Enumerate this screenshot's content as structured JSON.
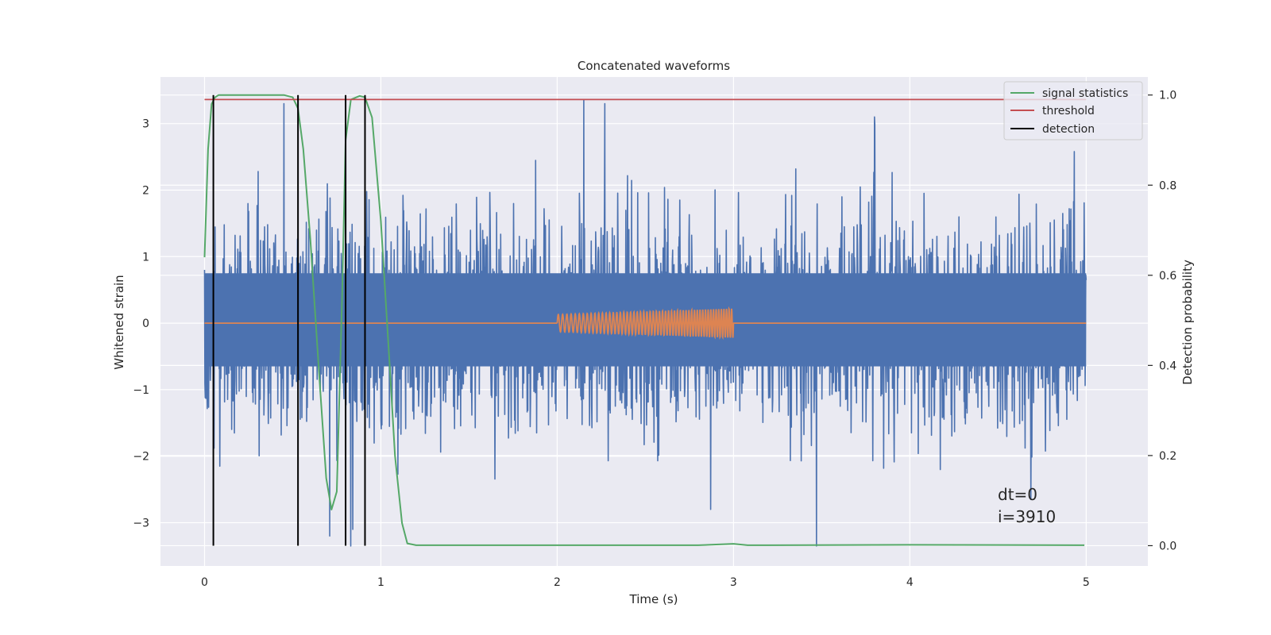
{
  "chart_data": {
    "type": "line",
    "title": "Concatenated waveforms",
    "xlabel": "Time (s)",
    "ylabel": "Whitened strain",
    "y2label": "Detection probability",
    "xlim": [
      -0.25,
      5.35
    ],
    "ylim": [
      -3.65,
      3.7
    ],
    "y2lim": [
      -0.045,
      1.04
    ],
    "xticks": [
      0,
      1,
      2,
      3,
      4,
      5
    ],
    "yticks": [
      -3,
      -2,
      -1,
      0,
      1,
      2,
      3
    ],
    "y2ticks": [
      0.0,
      0.2,
      0.4,
      0.6,
      0.8,
      1.0
    ],
    "xtick_labels": [
      "0",
      "1",
      "2",
      "3",
      "4",
      "5"
    ],
    "ytick_labels": [
      "−3",
      "−2",
      "−1",
      "0",
      "1",
      "2",
      "3"
    ],
    "y2tick_labels": [
      "0.0",
      "0.2",
      "0.4",
      "0.6",
      "0.8",
      "1.0"
    ],
    "grid": true,
    "legend_position": "top-right",
    "annotations": [
      "dt=0",
      "i=3910"
    ],
    "series": [
      {
        "role": "whitened_noise",
        "axis": "left",
        "color": "#4c72b0",
        "x_range": [
          0,
          5
        ],
        "band": [
          -0.65,
          0.75
        ],
        "max_abs": 3.35,
        "sample_spikes": [
          {
            "x": 0.45,
            "y": 3.3
          },
          {
            "x": 0.8,
            "y": 3.4
          },
          {
            "x": 2.15,
            "y": 3.35
          },
          {
            "x": 2.27,
            "y": 3.3
          },
          {
            "x": 3.8,
            "y": 3.1
          },
          {
            "x": 0.71,
            "y": -3.2
          },
          {
            "x": 0.84,
            "y": -3.1
          },
          {
            "x": 3.47,
            "y": -3.35
          },
          {
            "x": 2.87,
            "y": -2.8
          }
        ]
      },
      {
        "role": "injected_signal",
        "axis": "left",
        "color": "#dd8452",
        "x_range": [
          0,
          5
        ],
        "chirp_start": 2.0,
        "chirp_end": 3.0,
        "amp_start": 0.13,
        "amp_end": 0.22
      },
      {
        "name": "signal statistics",
        "axis": "right",
        "color": "#55a868",
        "x": [
          0.0,
          0.02,
          0.04,
          0.06,
          0.08,
          0.1,
          0.3,
          0.45,
          0.5,
          0.53,
          0.56,
          0.6,
          0.65,
          0.69,
          0.72,
          0.75,
          0.78,
          0.8,
          0.83,
          0.88,
          0.91,
          0.95,
          1.0,
          1.05,
          1.08,
          1.12,
          1.15,
          1.2,
          2.0,
          2.8,
          3.0,
          3.08,
          3.2,
          4.0,
          4.99
        ],
        "y": [
          0.64,
          0.88,
          0.98,
          0.995,
          1.0,
          1.0,
          1.0,
          1.0,
          0.995,
          0.97,
          0.88,
          0.68,
          0.38,
          0.15,
          0.08,
          0.12,
          0.55,
          0.9,
          0.99,
          0.998,
          0.995,
          0.95,
          0.72,
          0.4,
          0.2,
          0.05,
          0.005,
          0.001,
          0.001,
          0.001,
          0.004,
          0.001,
          0.001,
          0.002,
          0.001
        ]
      },
      {
        "name": "threshold",
        "axis": "right",
        "color": "#c44e52",
        "x": [
          0,
          5
        ],
        "y": [
          0.99,
          0.99
        ]
      },
      {
        "name": "detection",
        "axis": "right",
        "color": "#000000",
        "x": [
          0.05,
          0.53,
          0.8,
          0.91
        ],
        "y_range": [
          0.0,
          1.0
        ]
      }
    ]
  }
}
